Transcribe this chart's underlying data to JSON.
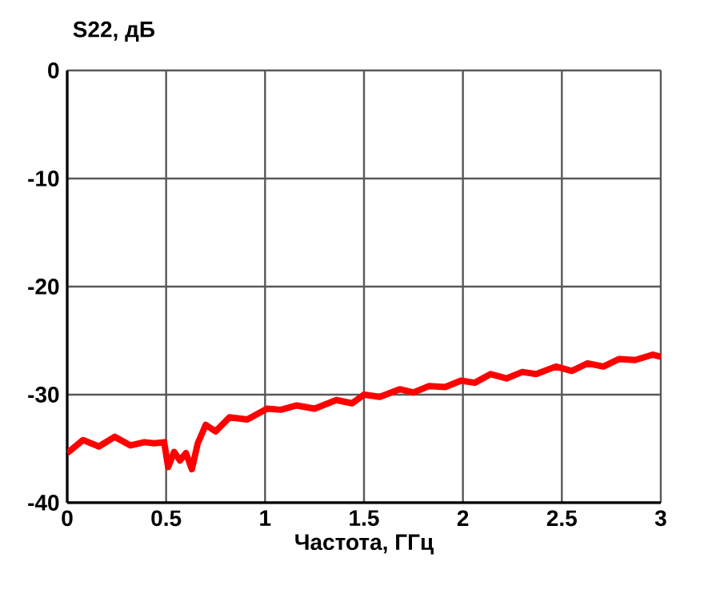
{
  "chart_data": {
    "type": "line",
    "xlabel": "Частота, ГГц",
    "ylabel": "S22, дБ",
    "xlim": [
      0,
      3
    ],
    "ylim": [
      -40,
      0
    ],
    "xticks": [
      0,
      0.5,
      1,
      1.5,
      2,
      2.5,
      3
    ],
    "yticks": [
      -40,
      -30,
      -20,
      -10,
      0
    ],
    "grid": true,
    "marker": "none",
    "line_style": "solid",
    "series": [
      {
        "color": "#ff0000",
        "x": [
          0,
          0.08,
          0.16,
          0.24,
          0.32,
          0.39,
          0.44,
          0.49,
          0.51,
          0.54,
          0.57,
          0.6,
          0.63,
          0.66,
          0.7,
          0.75,
          0.82,
          0.91,
          1.01,
          1.08,
          1.16,
          1.25,
          1.36,
          1.44,
          1.5,
          1.58,
          1.68,
          1.75,
          1.83,
          1.91,
          1.99,
          2.06,
          2.14,
          2.22,
          2.3,
          2.37,
          2.47,
          2.55,
          2.63,
          2.71,
          2.79,
          2.87,
          2.96,
          3.0
        ],
        "values": [
          -35.4,
          -34.2,
          -34.8,
          -33.9,
          -34.7,
          -34.4,
          -34.5,
          -34.4,
          -36.7,
          -35.3,
          -36.1,
          -35.4,
          -36.9,
          -34.5,
          -32.8,
          -33.4,
          -32.1,
          -32.3,
          -31.3,
          -31.4,
          -31.0,
          -31.3,
          -30.5,
          -30.8,
          -30.0,
          -30.2,
          -29.5,
          -29.8,
          -29.2,
          -29.3,
          -28.7,
          -28.9,
          -28.1,
          -28.5,
          -27.9,
          -28.1,
          -27.4,
          -27.8,
          -27.1,
          -27.4,
          -26.7,
          -26.8,
          -26.3,
          -26.5
        ]
      }
    ]
  }
}
